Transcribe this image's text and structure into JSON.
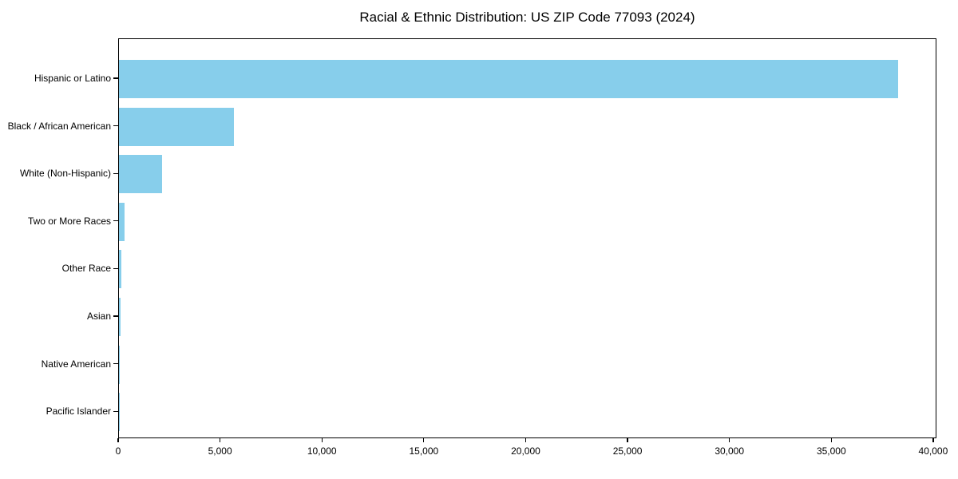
{
  "chart_data": {
    "type": "bar",
    "orientation": "horizontal",
    "title": "Racial & Ethnic Distribution: US ZIP Code 77093 (2024)",
    "categories": [
      "Hispanic or Latino",
      "Black / African American",
      "White (Non-Hispanic)",
      "Two or More Races",
      "Other Race",
      "Asian",
      "Native American",
      "Pacific Islander"
    ],
    "values": [
      38250,
      5630,
      2100,
      280,
      130,
      60,
      25,
      10
    ],
    "xlabel": "",
    "ylabel": "",
    "xlim": [
      0,
      40160
    ],
    "x_ticks": [
      0,
      5000,
      10000,
      15000,
      20000,
      25000,
      30000,
      35000,
      40000
    ],
    "x_tick_labels": [
      "0",
      "5,000",
      "10,000",
      "15,000",
      "20,000",
      "25,000",
      "30,000",
      "35,000",
      "40,000"
    ],
    "grid": false,
    "legend": false,
    "bar_color": "#87CEEB",
    "axis_color": "#000000",
    "text_color": "#000000",
    "background_color": "#ffffff"
  }
}
